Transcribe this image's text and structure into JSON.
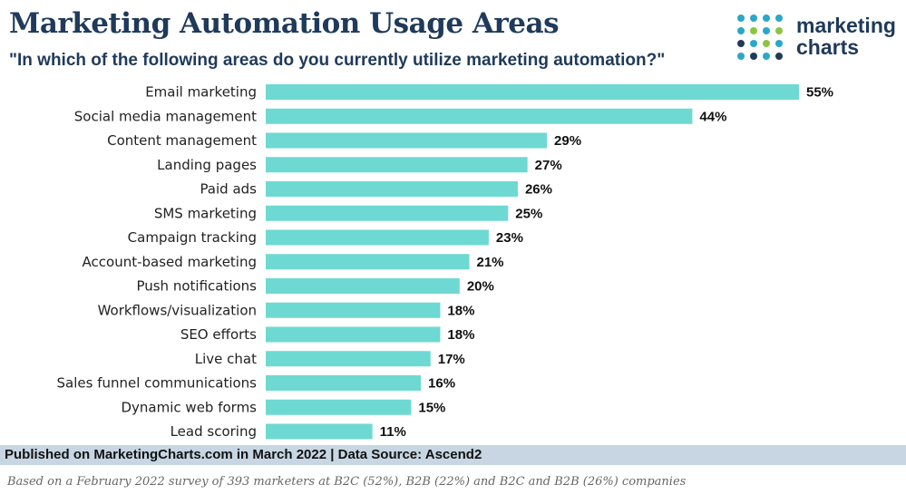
{
  "header": {
    "title": "Marketing Automation Usage Areas",
    "subtitle": "\"In which of the following areas do you currently utilize marketing automation?\""
  },
  "logo": {
    "line1": "marketing",
    "line2": "charts",
    "colors": [
      "#2aa7c9",
      "#8cc63f",
      "#1f3a5a"
    ]
  },
  "chart_data": {
    "type": "bar",
    "orientation": "horizontal",
    "categories": [
      "Email marketing",
      "Social media management",
      "Content management",
      "Landing pages",
      "Paid ads",
      "SMS marketing",
      "Campaign tracking",
      "Account-based marketing",
      "Push notifications",
      "Workflows/visualization",
      "SEO efforts",
      "Live chat",
      "Sales funnel communications",
      "Dynamic web forms",
      "Lead scoring"
    ],
    "values": [
      55,
      44,
      29,
      27,
      26,
      25,
      23,
      21,
      20,
      18,
      18,
      17,
      16,
      15,
      11
    ],
    "value_labels": [
      "55%",
      "44%",
      "29%",
      "27%",
      "26%",
      "25%",
      "23%",
      "21%",
      "20%",
      "18%",
      "18%",
      "17%",
      "16%",
      "15%",
      "11%"
    ],
    "unit": "%",
    "xlim": [
      0,
      55
    ],
    "bar_color": "#6dd9d2",
    "grid": false,
    "legend": "none"
  },
  "footer": {
    "published": "Published on MarketingCharts.com in March 2022 | Data Source: Ascend2",
    "note": "Based on a February 2022 survey of 393 marketers at B2C (52%), B2B (22%) and B2C and B2B (26%) companies"
  }
}
